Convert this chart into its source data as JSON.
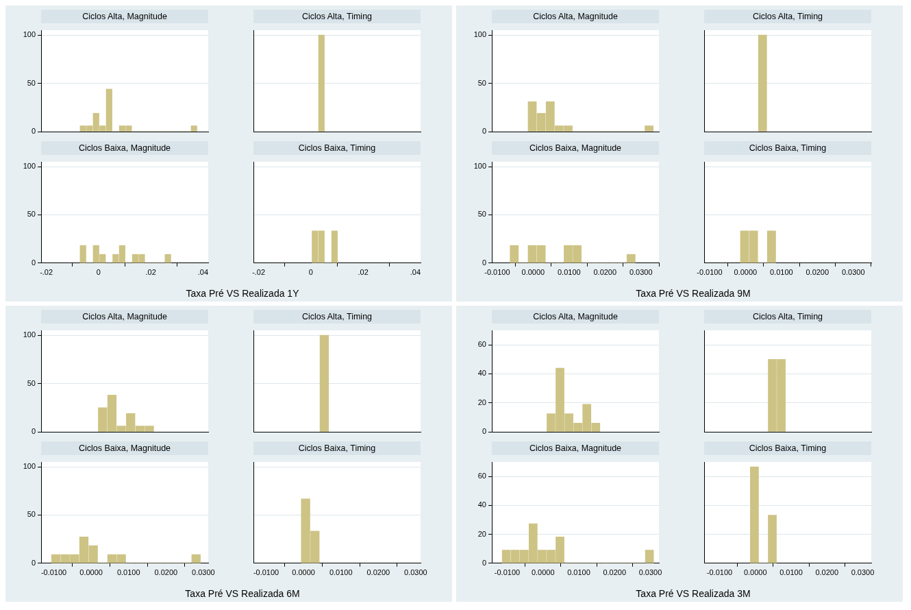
{
  "chart_data": [
    {
      "type": "histogram",
      "title": "Ciclos Alta, Magnitude",
      "color": "#cdc385",
      "bins": [
        -0.0072,
        -0.0047,
        -0.0022,
        0.0003,
        0.0028,
        0.0053,
        0.0078,
        0.0103,
        0.0128,
        0.0153,
        0.0178,
        0.0203,
        0.0228,
        0.0253,
        0.0278,
        0.0303,
        0.0328,
        0.0353,
        0.0378
      ],
      "values": [
        6,
        6,
        19,
        6,
        44,
        0,
        6,
        6,
        0,
        0,
        0,
        0,
        0,
        0,
        0,
        0,
        0,
        6
      ],
      "xlim": [
        -0.022,
        0.042
      ],
      "ylim": [
        0,
        105
      ],
      "yticks": [
        0,
        50,
        100
      ],
      "grid": "y",
      "tick_labels": "y"
    },
    {
      "type": "histogram",
      "title": "Ciclos Alta, Timing",
      "color": "#cdc385",
      "bins": [
        0.0028,
        0.0053
      ],
      "values": [
        100
      ],
      "xlim": [
        -0.022,
        0.042
      ],
      "ylim": [
        0,
        105
      ],
      "yticks": [
        0,
        50,
        100
      ],
      "grid": "y",
      "tick_labels": false
    },
    {
      "type": "histogram",
      "title": "Ciclos Baixa, Magnitude",
      "xlabel": "Taxa Pré VS Realizada 1Y",
      "color": "#cdc385",
      "bins": [
        -0.0072,
        -0.0047,
        -0.0022,
        0.0003,
        0.0028,
        0.0053,
        0.0078,
        0.0103,
        0.0128,
        0.0153,
        0.0178,
        0.0203,
        0.0228,
        0.0253,
        0.0278
      ],
      "values": [
        18.2,
        0,
        18.2,
        9.1,
        0,
        9.1,
        18.2,
        0,
        9.1,
        9.1,
        0,
        0,
        0,
        9.1
      ],
      "xlim": [
        -0.022,
        0.042
      ],
      "xticks": [
        {
          "value": -0.02,
          "label": "-.02"
        },
        0,
        {
          "value": 0.02,
          "label": ".02"
        },
        {
          "value": 0.04,
          "label": ".04"
        }
      ],
      "ylim": [
        0,
        105
      ],
      "yticks": [
        0,
        50,
        100
      ],
      "grid": "y"
    },
    {
      "type": "histogram",
      "title": "Ciclos Baixa, Timing",
      "color": "#cdc385",
      "bins": [
        0.0003,
        0.0028,
        0.0053,
        0.0078,
        0.0103
      ],
      "values": [
        33.3,
        33.3,
        0,
        33.3
      ],
      "xlim": [
        -0.022,
        0.042
      ],
      "xticks": [
        {
          "value": -0.02,
          "label": "-.02"
        },
        0,
        {
          "value": 0.02,
          "label": ".02"
        },
        {
          "value": 0.04,
          "label": ".04"
        }
      ],
      "ylim": [
        0,
        105
      ],
      "yticks": [
        0,
        50,
        100
      ],
      "grid": "y",
      "tick_labels": "x"
    },
    {
      "type": "histogram",
      "title": "Ciclos Alta, Magnitude",
      "color": "#cdc385",
      "bins": [
        -0.0015,
        0.001,
        0.0035,
        0.006,
        0.0085,
        0.011,
        0.0135,
        0.016,
        0.0185,
        0.021,
        0.0235,
        0.026,
        0.0285,
        0.031,
        0.0335
      ],
      "values": [
        31,
        19,
        31,
        6,
        6,
        0,
        0,
        0,
        0,
        0,
        0,
        0,
        0,
        6
      ],
      "xlim": [
        -0.0115,
        0.035
      ],
      "ylim": [
        0,
        105
      ],
      "yticks": [
        0,
        50,
        100
      ],
      "grid": "y",
      "tick_labels": "y"
    },
    {
      "type": "histogram",
      "title": "Ciclos Alta, Timing",
      "color": "#cdc385",
      "bins": [
        0.0035,
        0.006
      ],
      "values": [
        100
      ],
      "xlim": [
        -0.0115,
        0.035
      ],
      "ylim": [
        0,
        105
      ],
      "yticks": [
        0,
        50,
        100
      ],
      "grid": "y",
      "tick_labels": false
    },
    {
      "type": "histogram",
      "title": "Ciclos Baixa, Magnitude",
      "xlabel": "Taxa Pré VS Realizada 9M",
      "color": "#cdc385",
      "bins": [
        -0.0065,
        -0.004,
        -0.0015,
        0.001,
        0.0035,
        0.006,
        0.0085,
        0.011,
        0.0135,
        0.016,
        0.0185,
        0.021,
        0.0235,
        0.026,
        0.0285
      ],
      "values": [
        18.2,
        0,
        18.2,
        18.2,
        0,
        0,
        18.2,
        18.2,
        0,
        0,
        0,
        0,
        0,
        9.1
      ],
      "xlim": [
        -0.0115,
        0.035
      ],
      "xticks": [
        {
          "value": -0.01,
          "label": "-0.0100"
        },
        {
          "value": 0,
          "label": "0.0000"
        },
        {
          "value": 0.01,
          "label": "0.0100"
        },
        {
          "value": 0.02,
          "label": "0.0200"
        },
        {
          "value": 0.03,
          "label": "0.0300"
        }
      ],
      "ylim": [
        0,
        105
      ],
      "yticks": [
        0,
        50,
        100
      ],
      "grid": "y"
    },
    {
      "type": "histogram",
      "title": "Ciclos Baixa, Timing",
      "color": "#cdc385",
      "bins": [
        -0.0015,
        0.001,
        0.0035,
        0.006,
        0.0085
      ],
      "values": [
        33.3,
        33.3,
        0,
        33.3
      ],
      "xlim": [
        -0.0115,
        0.035
      ],
      "xticks": [
        {
          "value": -0.01,
          "label": "-0.0100"
        },
        {
          "value": 0,
          "label": "0.0000"
        },
        {
          "value": 0.01,
          "label": "0.0100"
        },
        {
          "value": 0.02,
          "label": "0.0200"
        },
        {
          "value": 0.03,
          "label": "0.0300"
        }
      ],
      "ylim": [
        0,
        105
      ],
      "yticks": [
        0,
        50,
        100
      ],
      "grid": "y",
      "tick_labels": "x"
    },
    {
      "type": "histogram",
      "title": "Ciclos Alta, Magnitude",
      "color": "#cdc385",
      "bins": [
        0.0018,
        0.0043,
        0.0068,
        0.0093,
        0.0118,
        0.0143,
        0.0168
      ],
      "values": [
        25,
        38,
        6,
        19,
        6,
        6
      ],
      "xlim": [
        -0.0134,
        0.0313
      ],
      "ylim": [
        0,
        105
      ],
      "yticks": [
        0,
        50,
        100
      ],
      "grid": "y",
      "tick_labels": "y"
    },
    {
      "type": "histogram",
      "title": "Ciclos Alta, Timing",
      "color": "#cdc385",
      "bins": [
        0.0043,
        0.0068
      ],
      "values": [
        100
      ],
      "xlim": [
        -0.0134,
        0.0313
      ],
      "ylim": [
        0,
        105
      ],
      "yticks": [
        0,
        50,
        100
      ],
      "grid": "y",
      "tick_labels": false
    },
    {
      "type": "histogram",
      "title": "Ciclos Baixa, Magnitude",
      "xlabel": "Taxa Pré VS Realizada 6M",
      "color": "#cdc385",
      "bins": [
        -0.0107,
        -0.0082,
        -0.0057,
        -0.0032,
        -0.0007,
        0.0018,
        0.0043,
        0.0068,
        0.0093,
        0.0118,
        0.0143,
        0.0168,
        0.0193,
        0.0218,
        0.0243,
        0.0268,
        0.0293
      ],
      "values": [
        9.1,
        9.1,
        9.1,
        27.3,
        18.2,
        0,
        9.1,
        9.1,
        0,
        0,
        0,
        0,
        0,
        0,
        0,
        9.1
      ],
      "xlim": [
        -0.0134,
        0.0313
      ],
      "xticks": [
        {
          "value": -0.01,
          "label": "-0.0100"
        },
        {
          "value": 0,
          "label": "0.0000"
        },
        {
          "value": 0.01,
          "label": "0.0100"
        },
        {
          "value": 0.02,
          "label": "0.0200"
        },
        {
          "value": 0.03,
          "label": "0.0300"
        }
      ],
      "ylim": [
        0,
        105
      ],
      "yticks": [
        0,
        50,
        100
      ],
      "grid": "y"
    },
    {
      "type": "histogram",
      "title": "Ciclos Baixa, Timing",
      "color": "#cdc385",
      "bins": [
        -0.0007,
        0.0018,
        0.0043
      ],
      "values": [
        66.7,
        33.3
      ],
      "xlim": [
        -0.0134,
        0.0313
      ],
      "xticks": [
        {
          "value": -0.01,
          "label": "-0.0100"
        },
        {
          "value": 0,
          "label": "0.0000"
        },
        {
          "value": 0.01,
          "label": "0.0100"
        },
        {
          "value": 0.02,
          "label": "0.0200"
        },
        {
          "value": 0.03,
          "label": "0.0300"
        }
      ],
      "ylim": [
        0,
        105
      ],
      "yticks": [
        0,
        50,
        100
      ],
      "grid": "y",
      "tick_labels": "x"
    },
    {
      "type": "histogram",
      "title": "Ciclos Alta, Magnitude",
      "color": "#cdc385",
      "bins": [
        0.001,
        0.0035,
        0.006,
        0.0085,
        0.011,
        0.0135,
        0.016
      ],
      "values": [
        12.5,
        44,
        12.5,
        6,
        19,
        6
      ],
      "xlim": [
        -0.0143,
        0.0324
      ],
      "ylim": [
        0,
        70
      ],
      "yticks": [
        0,
        20,
        40,
        60
      ],
      "grid": "y",
      "tick_labels": "y"
    },
    {
      "type": "histogram",
      "title": "Ciclos Alta, Timing",
      "color": "#cdc385",
      "bins": [
        0.0035,
        0.006,
        0.0085
      ],
      "values": [
        50,
        50
      ],
      "xlim": [
        -0.0143,
        0.0324
      ],
      "ylim": [
        0,
        70
      ],
      "yticks": [
        0,
        20,
        40,
        60
      ],
      "grid": "y",
      "tick_labels": false
    },
    {
      "type": "histogram",
      "title": "Ciclos Baixa, Magnitude",
      "xlabel": "Taxa Pré VS Realizada 3M",
      "color": "#cdc385",
      "bins": [
        -0.0115,
        -0.009,
        -0.0065,
        -0.004,
        -0.0015,
        0.001,
        0.0035,
        0.006,
        0.0085,
        0.011,
        0.0135,
        0.016,
        0.0185,
        0.021,
        0.0235,
        0.026,
        0.0285,
        0.031
      ],
      "values": [
        9.1,
        9.1,
        9.1,
        27.3,
        9.1,
        9.1,
        18.2,
        0,
        0,
        0,
        0,
        0,
        0,
        0,
        0,
        0,
        9.1
      ],
      "xlim": [
        -0.0143,
        0.0324
      ],
      "xticks": [
        {
          "value": -0.01,
          "label": "-0.0100"
        },
        {
          "value": 0,
          "label": "0.0000"
        },
        {
          "value": 0.01,
          "label": "0.0100"
        },
        {
          "value": 0.02,
          "label": "0.0200"
        },
        {
          "value": 0.03,
          "label": "0.0300"
        }
      ],
      "ylim": [
        0,
        70
      ],
      "yticks": [
        0,
        20,
        40,
        60
      ],
      "grid": "y"
    },
    {
      "type": "histogram",
      "title": "Ciclos Baixa, Timing",
      "color": "#cdc385",
      "bins": [
        -0.0015,
        0.001,
        0.0035,
        0.006
      ],
      "values": [
        66.7,
        0,
        33.3
      ],
      "xlim": [
        -0.0143,
        0.0324
      ],
      "xticks": [
        {
          "value": -0.01,
          "label": "-0.0100"
        },
        {
          "value": 0,
          "label": "0.0000"
        },
        {
          "value": 0.01,
          "label": "0.0100"
        },
        {
          "value": 0.02,
          "label": "0.0200"
        },
        {
          "value": 0.03,
          "label": "0.0300"
        }
      ],
      "ylim": [
        0,
        70
      ],
      "yticks": [
        0,
        20,
        40,
        60
      ],
      "grid": "y",
      "tick_labels": "x"
    }
  ]
}
